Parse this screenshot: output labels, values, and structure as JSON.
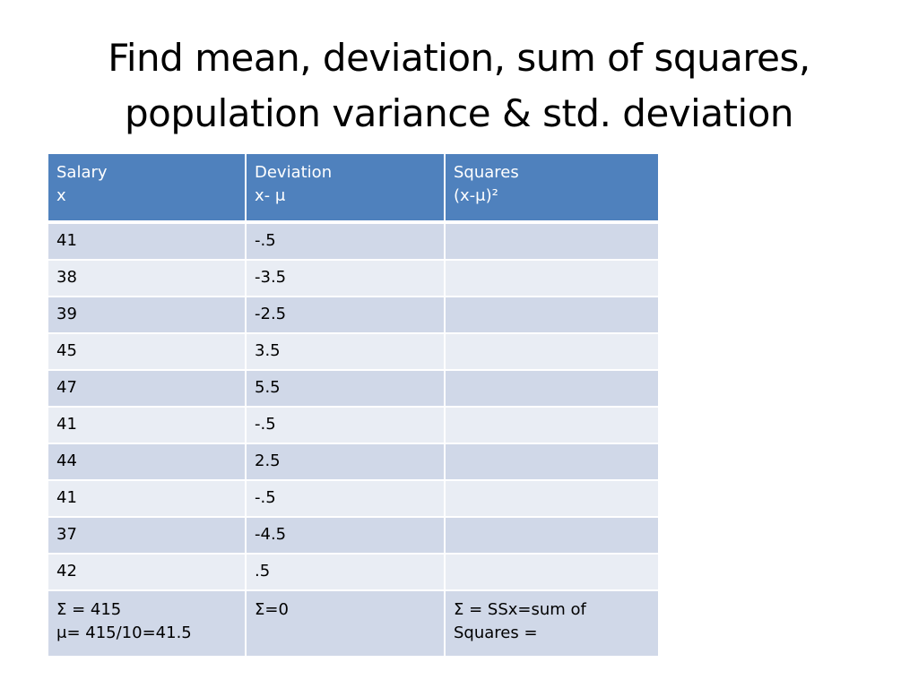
{
  "slide": {
    "title_line1": "Find mean, deviation, sum of squares,",
    "title_line2": "population variance & std. deviation"
  },
  "table": {
    "headers": [
      {
        "line1": "Salary",
        "line2": "x"
      },
      {
        "line1": "Deviation",
        "line2": "x- μ"
      },
      {
        "line1": "Squares",
        "line2": "(x-μ)²"
      }
    ],
    "rows": [
      {
        "salary": "41",
        "deviation": "-.5",
        "square": ""
      },
      {
        "salary": "38",
        "deviation": "-3.5",
        "square": ""
      },
      {
        "salary": "39",
        "deviation": "-2.5",
        "square": ""
      },
      {
        "salary": "45",
        "deviation": "3.5",
        "square": ""
      },
      {
        "salary": "47",
        "deviation": "5.5",
        "square": ""
      },
      {
        "salary": "41",
        "deviation": "-.5",
        "square": ""
      },
      {
        "salary": "44",
        "deviation": "2.5",
        "square": ""
      },
      {
        "salary": "41",
        "deviation": "-.5",
        "square": ""
      },
      {
        "salary": "37",
        "deviation": "-4.5",
        "square": ""
      },
      {
        "salary": "42",
        "deviation": ".5",
        "square": ""
      }
    ],
    "summary": {
      "salary_line1": "Σ = 415",
      "salary_line2": "μ= 415/10=41.5",
      "deviation": "Σ=0",
      "square_line1": "Σ = SSx=sum of",
      "square_line2": "Squares ="
    }
  },
  "colors": {
    "header_bg": "#4f81bd",
    "row_odd_bg": "#d0d8e8",
    "row_even_bg": "#e9edf4",
    "header_text": "#ffffff"
  }
}
